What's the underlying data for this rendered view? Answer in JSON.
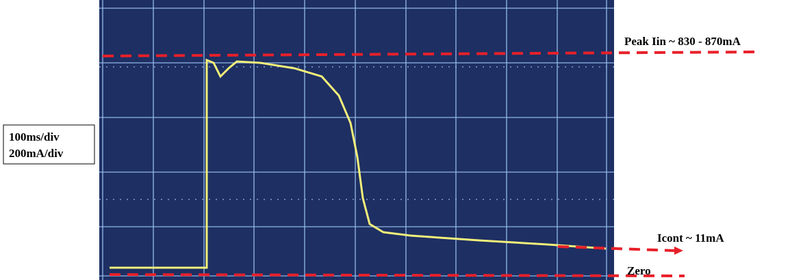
{
  "annotations": {
    "peak": "Peak Iin ~ 830 - 870mA",
    "scale_time": "100ms/div",
    "scale_current": "200mA/div",
    "icont": "Icont ~ 11mA",
    "zero": "Zero"
  }
}
